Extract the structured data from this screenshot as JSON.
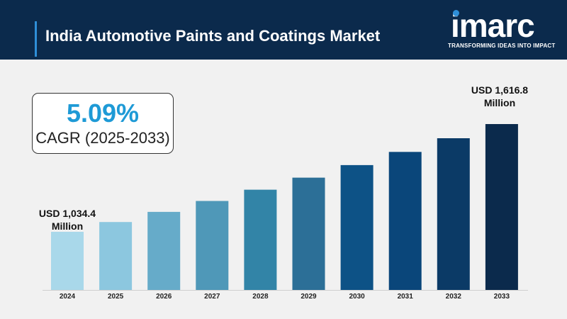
{
  "header": {
    "title": "India Automotive Paints and Coatings Market"
  },
  "logo": {
    "wordmark": "imarc",
    "tagline": "TRANSFORMING IDEAS INTO IMPACT"
  },
  "cagr": {
    "value": "5.09%",
    "label": "CAGR (2025-2033)"
  },
  "chart_data": {
    "type": "bar",
    "categories": [
      "2024",
      "2025",
      "2026",
      "2027",
      "2028",
      "2029",
      "2030",
      "2031",
      "2032",
      "2033"
    ],
    "values": [
      1034.4,
      1087.0,
      1142.0,
      1201.0,
      1262.0,
      1327.0,
      1395.0,
      1466.0,
      1540.0,
      1616.8
    ],
    "unit": "USD Million",
    "ylim": [
      720,
      1730
    ],
    "grid": false,
    "colors": [
      "#a9d8ea",
      "#8cc7df",
      "#66abc9",
      "#4f98b8",
      "#3284a7",
      "#2c6f97",
      "#0d5286",
      "#0a467a",
      "#0b3a66",
      "#0b2a4c"
    ],
    "annotations": {
      "first": "USD 1,034.4\nMillion",
      "last": "USD 1,616.8\nMillion"
    }
  }
}
